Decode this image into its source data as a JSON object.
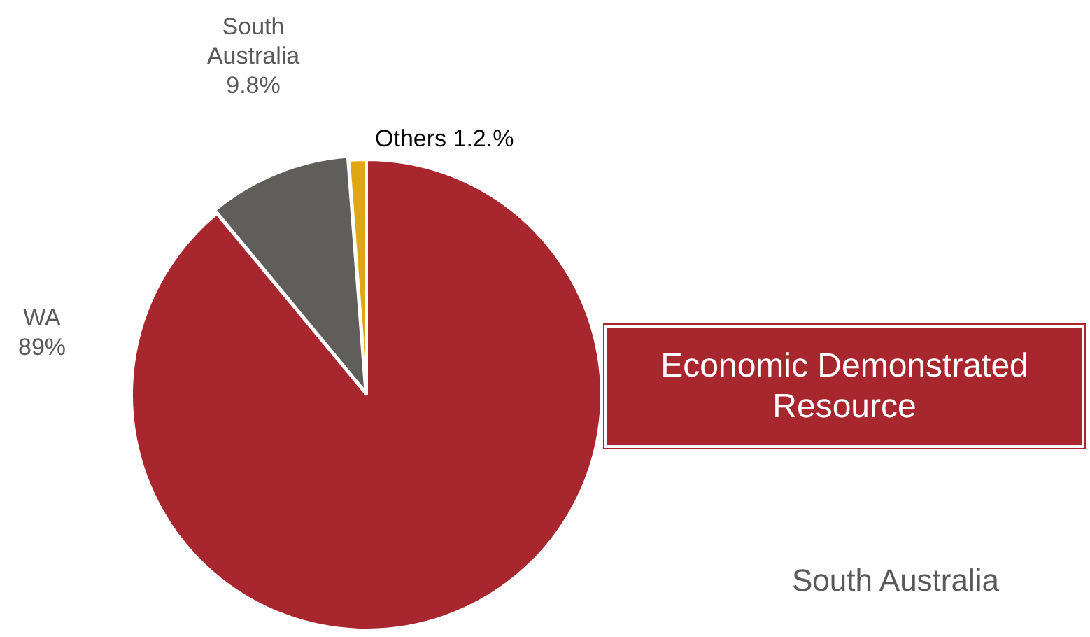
{
  "chart_data": {
    "type": "pie",
    "title": "Economic Demonstrated Resource",
    "categories": [
      "WA",
      "South Australia",
      "Others"
    ],
    "values": [
      89,
      9.8,
      1.2
    ],
    "value_labels": [
      "89%",
      "9.8%",
      "1.2.%"
    ],
    "colors": [
      "#a8262e",
      "#5f5e5b",
      "#e0a614"
    ],
    "legend": false,
    "annotations": [
      "South Australia"
    ]
  }
}
